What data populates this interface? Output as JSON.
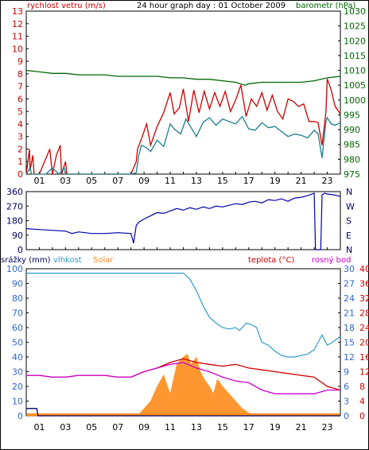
{
  "title": "24 hour graph day : 01 October 2009",
  "colors": {
    "wind": "#cc0000",
    "gust": "#cc0000",
    "windavg": "#1a7f8e",
    "pressure": "#006600",
    "direction": "#0000aa",
    "humidity": "#3399cc",
    "solar": "#ff8c1a",
    "rain": "#000066",
    "temperature": "#cc0000",
    "dewpoint": "#cc00cc",
    "rain_axis": "#3366cc",
    "axis_right_red": "#cc0000"
  },
  "x_tick_labels": [
    "01",
    "03",
    "05",
    "07",
    "09",
    "11",
    "13",
    "15",
    "17",
    "19",
    "21",
    "23"
  ],
  "charts": [
    {
      "id": "wind_pressure",
      "type": "line",
      "left_axis_label": "rychlost vetru (m/s)",
      "right_axis_label": "barometr (hPa)",
      "left_ticks": [
        "0",
        "1",
        "2",
        "3",
        "4",
        "5",
        "6",
        "7",
        "8",
        "9",
        "10",
        "11",
        "12",
        "13"
      ],
      "right_ticks": [
        "975",
        "980",
        "985",
        "990",
        "995",
        "1000",
        "1005",
        "1010",
        "1015",
        "1020",
        "1025",
        "1030"
      ]
    },
    {
      "id": "wind_direction",
      "type": "line",
      "left_ticks": [
        "0",
        "90",
        "180",
        "270",
        "360"
      ],
      "right_ticks": [
        "N",
        "E",
        "S",
        "W",
        "N"
      ]
    },
    {
      "id": "rain_temp",
      "type": "area",
      "left_axis_label": "srážky (mm)",
      "legend_humidity": "vlhkost",
      "legend_solar": "Solar",
      "legend_temp": "teplota (°C)",
      "legend_dew": "rosný bod",
      "left_ticks": [
        "0",
        "10",
        "20",
        "30",
        "40",
        "50",
        "60",
        "70",
        "80",
        "90",
        "100"
      ],
      "right_ticks": [
        "0",
        "4",
        "8",
        "12",
        "16",
        "20",
        "24",
        "28",
        "32",
        "36",
        "40"
      ],
      "rain_ticks": [
        "0",
        "3",
        "6",
        "9",
        "12",
        "15",
        "18",
        "21",
        "24",
        "27",
        "30"
      ]
    }
  ],
  "chart_data": [
    {
      "type": "line",
      "xlabel": "",
      "ylabel": "rychlost vetru (m/s)",
      "x_range_hours": [
        0,
        24
      ],
      "ylim_left": [
        0,
        13
      ],
      "ylim_right": [
        975,
        1030
      ],
      "series": [
        {
          "name": "wind_avg",
          "axis": "left",
          "x": [
            0,
            0.3,
            0.4,
            1,
            1.5,
            2,
            2.5,
            2.9,
            3,
            4,
            5,
            6,
            7,
            8,
            8.4,
            8.6,
            8.8,
            9.2,
            9.5,
            10,
            10.5,
            11,
            11.3,
            11.8,
            12.2,
            12.6,
            13,
            13.5,
            14,
            14.5,
            15,
            15.5,
            16,
            16.5,
            17,
            17.5,
            18,
            18.5,
            19,
            19.5,
            20,
            20.5,
            21,
            21.5,
            22,
            22.3,
            22.6,
            22.9,
            23,
            23.3,
            23.6,
            24
          ],
          "y": [
            0,
            0.5,
            0,
            0,
            0,
            0.5,
            0,
            0.5,
            0,
            0,
            0,
            0,
            0,
            0,
            0.1,
            1.5,
            2.3,
            2.1,
            1.8,
            2.7,
            2.2,
            4.0,
            3.6,
            3.2,
            4.4,
            3.7,
            3.0,
            4.1,
            4.5,
            3.9,
            4.4,
            4.2,
            4.0,
            4.6,
            3.6,
            3.5,
            4.1,
            3.7,
            3.8,
            3.4,
            3.0,
            3.2,
            3.1,
            2.9,
            3.5,
            3.2,
            1.3,
            4.2,
            4.5,
            4.0,
            3.9,
            4.1
          ]
        },
        {
          "name": "gust",
          "axis": "left",
          "x": [
            0,
            0.25,
            0.3,
            0.5,
            0.6,
            1,
            1.8,
            2,
            2.3,
            2.6,
            2.7,
            3,
            3.1,
            8,
            8.4,
            8.5,
            8.8,
            9.2,
            9.5,
            10,
            10.5,
            11,
            11.3,
            11.7,
            12,
            12.4,
            12.8,
            13.2,
            13.6,
            14,
            14.4,
            14.8,
            15.2,
            15.6,
            16,
            16.4,
            16.8,
            17.2,
            17.6,
            18,
            18.4,
            18.8,
            19.2,
            19.6,
            20,
            20.4,
            20.8,
            21.2,
            21.6,
            22,
            22.3,
            22.6,
            22.9,
            23,
            23.3,
            23.6,
            24
          ],
          "y": [
            0,
            2,
            0.3,
            1.5,
            0,
            0,
            2,
            0,
            1.5,
            2.3,
            0,
            1.0,
            0,
            0,
            1.0,
            2.0,
            2.8,
            4.0,
            2.3,
            3.8,
            4.9,
            6.5,
            4.8,
            5.3,
            6.8,
            4.2,
            6.7,
            4.9,
            6.6,
            5.2,
            6.5,
            5.4,
            6.6,
            5.0,
            5.9,
            7.1,
            4.6,
            6.0,
            5.4,
            6.5,
            5.1,
            6.3,
            5.0,
            4.4,
            6.0,
            5.8,
            5.4,
            5.6,
            4.2,
            4.2,
            4.1,
            2.3,
            5.0,
            7.6,
            6.7,
            5.4,
            4.8
          ]
        },
        {
          "name": "pressure",
          "axis": "right",
          "x": [
            0,
            1,
            2,
            3,
            4,
            5,
            6,
            7,
            8,
            9,
            10,
            11,
            12,
            13,
            14,
            15,
            16,
            16.7,
            17,
            18,
            19,
            20,
            21,
            22,
            23,
            24
          ],
          "y": [
            1010,
            1009.5,
            1009,
            1009,
            1008.5,
            1008.5,
            1008.5,
            1008,
            1008,
            1008,
            1008,
            1007.5,
            1007.5,
            1007,
            1007,
            1006.5,
            1006,
            1005,
            1005.5,
            1006,
            1006,
            1006,
            1006,
            1006.5,
            1007.5,
            1008
          ]
        }
      ]
    },
    {
      "type": "line",
      "xlabel": "",
      "ylabel": "",
      "x_range_hours": [
        0,
        24
      ],
      "ylim": [
        0,
        360
      ],
      "series": [
        {
          "name": "wind_direction",
          "x": [
            0,
            1,
            2,
            3,
            3.5,
            4,
            5,
            6,
            7,
            8,
            8.2,
            8.4,
            8.6,
            9,
            9.5,
            10,
            10.5,
            11,
            11.5,
            12,
            12.5,
            13,
            13.5,
            14,
            14.5,
            15,
            15.5,
            16,
            16.5,
            17,
            17.5,
            18,
            18.5,
            19,
            19.5,
            20,
            20.5,
            21,
            21.5,
            22,
            22.1,
            22.2,
            22.5,
            22.6,
            22.8,
            23,
            23.5,
            24
          ],
          "y": [
            130,
            125,
            120,
            115,
            100,
            110,
            100,
            100,
            105,
            100,
            40,
            150,
            170,
            190,
            210,
            230,
            225,
            240,
            255,
            245,
            260,
            250,
            265,
            255,
            270,
            265,
            275,
            285,
            280,
            295,
            300,
            290,
            310,
            305,
            315,
            300,
            320,
            325,
            335,
            350,
            0,
            0,
            0,
            340,
            350,
            345,
            340,
            330
          ]
        }
      ]
    },
    {
      "type": "area",
      "xlabel": "",
      "ylabel": "",
      "x_range_hours": [
        0,
        24
      ],
      "ylim_left": [
        0,
        100
      ],
      "ylim_right": [
        0,
        40
      ],
      "ylim_rain": [
        0,
        30
      ],
      "series": [
        {
          "name": "vlhkost",
          "axis": "left",
          "x": [
            0,
            1,
            2,
            3,
            4,
            5,
            6,
            7,
            8,
            9,
            10,
            11,
            11.5,
            12,
            12.5,
            13,
            13.5,
            14,
            14.5,
            15,
            15.5,
            16,
            16.3,
            16.8,
            17.2,
            17.6,
            18,
            18.5,
            19,
            19.5,
            20,
            20.5,
            21,
            21.5,
            22,
            22.3,
            22.6,
            23,
            23.4,
            24
          ],
          "y": [
            97,
            97,
            97,
            97,
            97,
            97,
            97,
            97,
            97,
            97,
            97,
            97,
            97,
            97,
            93,
            85,
            75,
            67,
            63,
            60,
            59,
            60,
            58,
            63,
            62,
            60,
            50,
            48,
            44,
            41,
            40,
            40,
            41,
            42,
            45,
            50,
            55,
            48,
            50,
            54
          ]
        },
        {
          "name": "teplota (°C)",
          "axis": "right",
          "x": [
            0,
            1,
            2,
            3,
            4,
            5,
            6,
            7,
            8,
            9,
            10,
            11,
            12,
            13,
            14,
            15,
            16,
            17,
            18,
            19,
            20,
            21,
            22,
            23,
            24
          ],
          "y": [
            11,
            11,
            10.5,
            10.5,
            11,
            11,
            11,
            10.5,
            10.5,
            12,
            13,
            14.5,
            15.5,
            14.5,
            14,
            13.5,
            14,
            13,
            12.5,
            12,
            11.5,
            11,
            10.5,
            8,
            7
          ]
        },
        {
          "name": "rosný bod",
          "axis": "right",
          "x": [
            0,
            1,
            2,
            3,
            4,
            5,
            6,
            7,
            8,
            9,
            10,
            11,
            12,
            13,
            14,
            15,
            16,
            17,
            18,
            19,
            20,
            21,
            22,
            23,
            24
          ],
          "y": [
            11,
            11,
            10.5,
            10.5,
            11,
            11,
            11,
            10.5,
            10.5,
            12,
            13,
            14,
            14.5,
            13,
            12,
            10.5,
            9.5,
            9,
            7,
            6,
            6,
            6,
            6,
            7,
            7
          ]
        },
        {
          "name": "Solar",
          "axis": "left",
          "x": [
            0,
            8.5,
            9,
            9.5,
            10,
            10.5,
            11,
            11.5,
            12,
            12.3,
            12.6,
            13,
            13.3,
            13.6,
            14,
            14.3,
            14.6,
            15,
            15.5,
            16,
            16.5,
            17,
            17.5,
            24
          ],
          "y": [
            0,
            0,
            5,
            10,
            20,
            28,
            15,
            35,
            40,
            42,
            35,
            40,
            30,
            25,
            20,
            15,
            25,
            20,
            15,
            10,
            5,
            2,
            0,
            0
          ]
        },
        {
          "name": "srážky (mm)",
          "axis": "rain",
          "x": [
            0,
            0.8,
            0.9,
            24
          ],
          "y": [
            1.5,
            1.5,
            0,
            0
          ]
        }
      ]
    }
  ]
}
